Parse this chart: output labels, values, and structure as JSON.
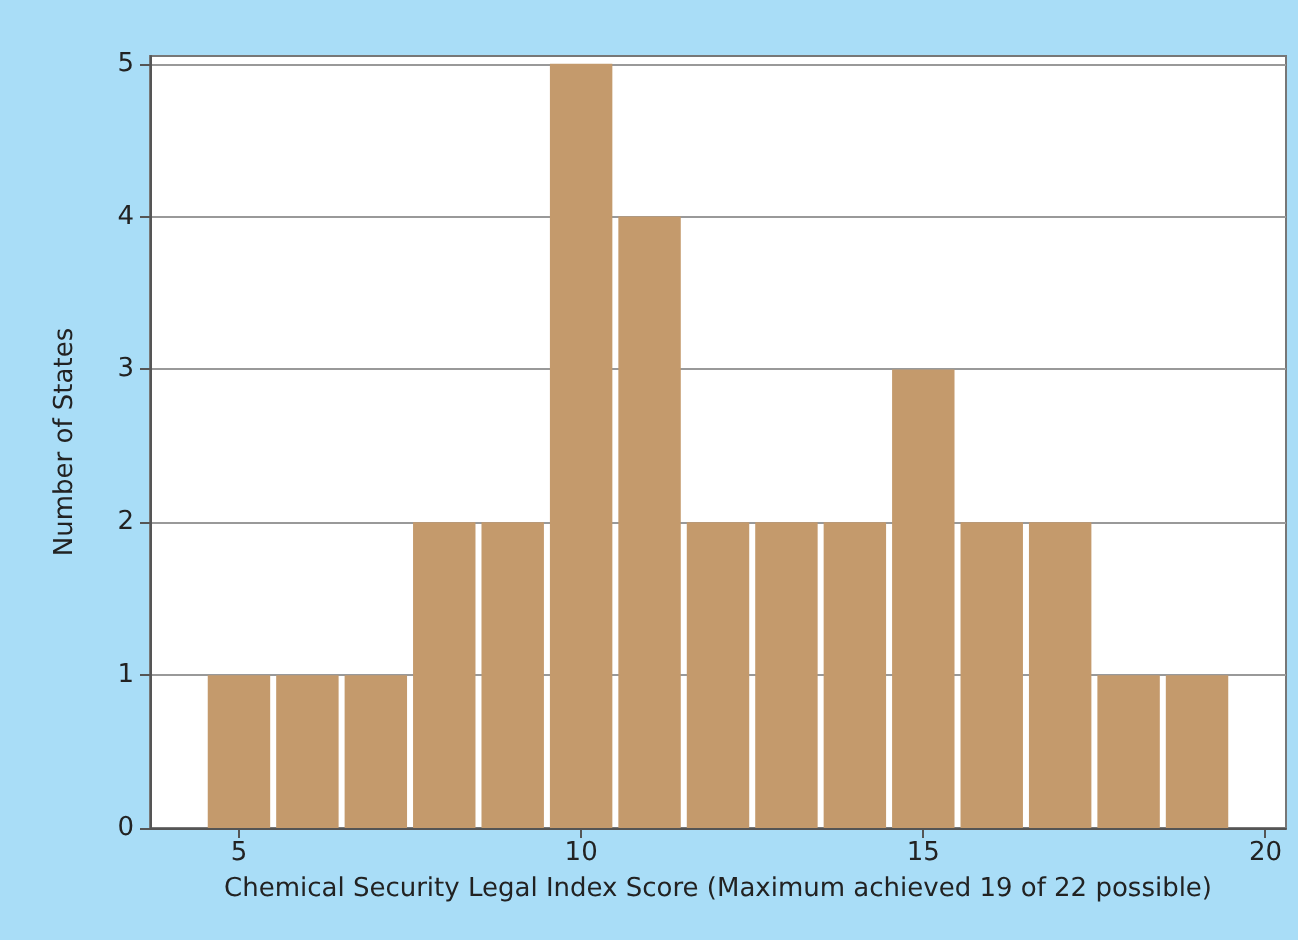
{
  "chart_data": {
    "type": "histogram",
    "xlabel": "Chemical Security Legal Index Score (Maximum achieved 19 of 22 possible)",
    "ylabel": "Number of States",
    "bins": [
      4.5,
      5.5,
      6.5,
      7.5,
      8.5,
      9.5,
      10.5,
      11.5,
      12.5,
      13.5,
      14.5,
      15.5,
      16.5,
      17.5,
      18.5,
      19.5
    ],
    "values": [
      1,
      1,
      1,
      2,
      2,
      5,
      4,
      2,
      2,
      2,
      3,
      2,
      2,
      1,
      1
    ],
    "color": "#c49a6c",
    "xlim": [
      3.7,
      20.3
    ],
    "xticks": [
      5,
      10,
      15,
      20
    ],
    "ylim": [
      0,
      5.05
    ],
    "yticks": [
      0,
      1,
      2,
      3,
      4,
      5
    ],
    "grid": "y"
  }
}
